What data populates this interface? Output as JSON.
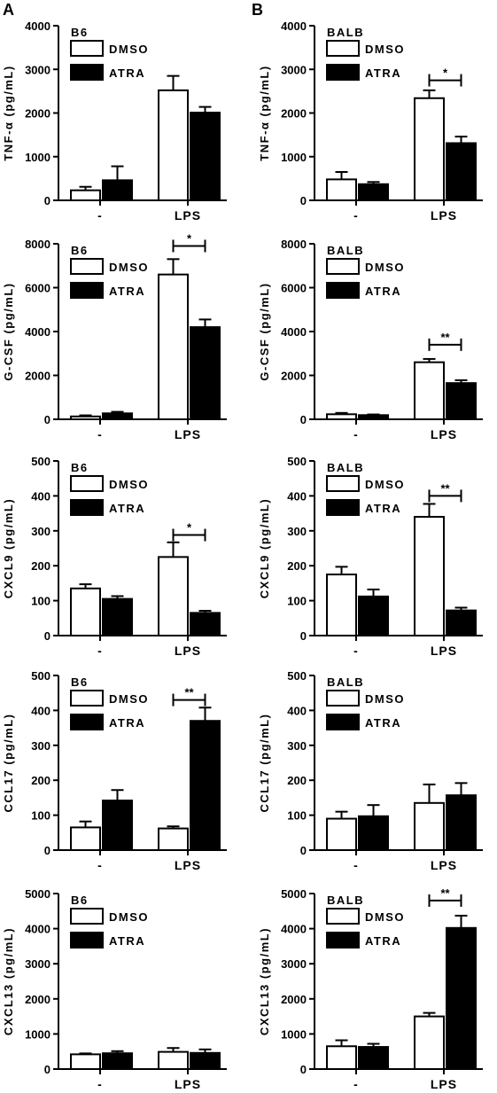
{
  "figure": {
    "panel_labels": [
      "A",
      "B"
    ],
    "legend_labels": [
      "DMSO",
      "ATRA"
    ],
    "category_labels": [
      "-",
      "LPS"
    ],
    "colors": {
      "DMSO": "#ffffff",
      "ATRA": "#000000",
      "stroke": "#000000"
    }
  },
  "chart_data": [
    {
      "type": "bar",
      "panel": "A",
      "strain": "B6",
      "ylabel": "TNF-α (pg/mL)",
      "ylim": [
        0,
        4000
      ],
      "yticks": [
        0,
        1000,
        2000,
        3000,
        4000
      ],
      "ytick_labels": [
        "0",
        "1000",
        "2000",
        "3000",
        "4000"
      ],
      "categories": [
        "-",
        "LPS"
      ],
      "series": [
        {
          "name": "DMSO",
          "values": [
            230,
            2520
          ],
          "errors": [
            80,
            330
          ]
        },
        {
          "name": "ATRA",
          "values": [
            460,
            2010
          ],
          "errors": [
            320,
            130
          ]
        }
      ],
      "significance": []
    },
    {
      "type": "bar",
      "panel": "B",
      "strain": "BALB",
      "ylabel": "TNF-α (pg/mL)",
      "ylim": [
        0,
        4000
      ],
      "yticks": [
        0,
        1000,
        2000,
        3000,
        4000
      ],
      "ytick_labels": [
        "0",
        "1000",
        "2000",
        "3000",
        "4000"
      ],
      "categories": [
        "-",
        "LPS"
      ],
      "series": [
        {
          "name": "DMSO",
          "values": [
            480,
            2340
          ],
          "errors": [
            170,
            180
          ]
        },
        {
          "name": "ATRA",
          "values": [
            370,
            1310
          ],
          "errors": [
            50,
            150
          ]
        }
      ],
      "significance": [
        {
          "label": "*",
          "y": 2750
        }
      ]
    },
    {
      "type": "bar",
      "panel": "A",
      "strain": "B6",
      "ylabel": "G-CSF (pg/mL)",
      "ylim": [
        0,
        8000
      ],
      "yticks": [
        0,
        2000,
        4000,
        6000,
        8000
      ],
      "ytick_labels": [
        "0",
        "2000",
        "4000",
        "6000",
        "8000"
      ],
      "categories": [
        "-",
        "LPS"
      ],
      "series": [
        {
          "name": "DMSO",
          "values": [
            130,
            6600
          ],
          "errors": [
            50,
            700
          ]
        },
        {
          "name": "ATRA",
          "values": [
            270,
            4200
          ],
          "errors": [
            70,
            350
          ]
        }
      ],
      "significance": [
        {
          "label": "*",
          "y": 7900
        }
      ]
    },
    {
      "type": "bar",
      "panel": "B",
      "strain": "BALB",
      "ylabel": "G-CSF (pg/mL)",
      "ylim": [
        0,
        8000
      ],
      "yticks": [
        0,
        2000,
        4000,
        6000,
        8000
      ],
      "ytick_labels": [
        "0",
        "2000",
        "4000",
        "6000",
        "8000"
      ],
      "categories": [
        "-",
        "LPS"
      ],
      "series": [
        {
          "name": "DMSO",
          "values": [
            230,
            2600
          ],
          "errors": [
            60,
            150
          ]
        },
        {
          "name": "ATRA",
          "values": [
            190,
            1650
          ],
          "errors": [
            30,
            130
          ]
        }
      ],
      "significance": [
        {
          "label": "**",
          "y": 3400
        }
      ]
    },
    {
      "type": "bar",
      "panel": "A",
      "strain": "B6",
      "ylabel": "CXCL9 (pg/mL)",
      "ylim": [
        0,
        500
      ],
      "yticks": [
        0,
        100,
        200,
        300,
        400,
        500
      ],
      "ytick_labels": [
        "0",
        "100",
        "200",
        "300",
        "400",
        "500"
      ],
      "categories": [
        "-",
        "LPS"
      ],
      "series": [
        {
          "name": "DMSO",
          "values": [
            135,
            225
          ],
          "errors": [
            12,
            42
          ]
        },
        {
          "name": "ATRA",
          "values": [
            105,
            65
          ],
          "errors": [
            8,
            6
          ]
        }
      ],
      "significance": [
        {
          "label": "*",
          "y": 288
        }
      ]
    },
    {
      "type": "bar",
      "panel": "B",
      "strain": "BALB",
      "ylabel": "CXCL9 (pg/mL)",
      "ylim": [
        0,
        500
      ],
      "yticks": [
        0,
        100,
        200,
        300,
        400,
        500
      ],
      "ytick_labels": [
        "0",
        "100",
        "200",
        "300",
        "400",
        "500"
      ],
      "categories": [
        "-",
        "LPS"
      ],
      "series": [
        {
          "name": "DMSO",
          "values": [
            175,
            340
          ],
          "errors": [
            22,
            37
          ]
        },
        {
          "name": "ATRA",
          "values": [
            112,
            72
          ],
          "errors": [
            20,
            8
          ]
        }
      ],
      "significance": [
        {
          "label": "**",
          "y": 400
        }
      ]
    },
    {
      "type": "bar",
      "panel": "A",
      "strain": "B6",
      "ylabel": "CCL17 (pg/mL)",
      "ylim": [
        0,
        500
      ],
      "yticks": [
        0,
        100,
        200,
        300,
        400,
        500
      ],
      "ytick_labels": [
        "0",
        "100",
        "200",
        "300",
        "400",
        "500"
      ],
      "categories": [
        "-",
        "LPS"
      ],
      "series": [
        {
          "name": "DMSO",
          "values": [
            65,
            62
          ],
          "errors": [
            17,
            6
          ]
        },
        {
          "name": "ATRA",
          "values": [
            142,
            370
          ],
          "errors": [
            30,
            38
          ]
        }
      ],
      "significance": [
        {
          "label": "**",
          "y": 430
        }
      ]
    },
    {
      "type": "bar",
      "panel": "B",
      "strain": "BALB",
      "ylabel": "CCL17 (pg/mL)",
      "ylim": [
        0,
        500
      ],
      "yticks": [
        0,
        100,
        200,
        300,
        400,
        500
      ],
      "ytick_labels": [
        "0",
        "100",
        "200",
        "300",
        "400",
        "500"
      ],
      "categories": [
        "-",
        "LPS"
      ],
      "series": [
        {
          "name": "DMSO",
          "values": [
            90,
            135
          ],
          "errors": [
            20,
            53
          ]
        },
        {
          "name": "ATRA",
          "values": [
            97,
            157
          ],
          "errors": [
            32,
            35
          ]
        }
      ],
      "significance": []
    },
    {
      "type": "bar",
      "panel": "A",
      "strain": "B6",
      "ylabel": "CXCL13 (pg/mL)",
      "ylim": [
        0,
        5000
      ],
      "yticks": [
        0,
        1000,
        2000,
        3000,
        4000,
        5000
      ],
      "ytick_labels": [
        "0",
        "1000",
        "2000",
        "3000",
        "4000",
        "5000"
      ],
      "categories": [
        "-",
        "LPS"
      ],
      "series": [
        {
          "name": "DMSO",
          "values": [
            420,
            490
          ],
          "errors": [
            25,
            110
          ]
        },
        {
          "name": "ATRA",
          "values": [
            450,
            460
          ],
          "errors": [
            60,
            100
          ]
        }
      ],
      "significance": []
    },
    {
      "type": "bar",
      "panel": "B",
      "strain": "BALB",
      "ylabel": "CXCL13 (pg/mL)",
      "ylim": [
        0,
        5000
      ],
      "yticks": [
        0,
        1000,
        2000,
        3000,
        4000,
        5000
      ],
      "ytick_labels": [
        "0",
        "1000",
        "2000",
        "3000",
        "4000",
        "5000"
      ],
      "categories": [
        "-",
        "LPS"
      ],
      "series": [
        {
          "name": "DMSO",
          "values": [
            650,
            1500
          ],
          "errors": [
            170,
            100
          ]
        },
        {
          "name": "ATRA",
          "values": [
            630,
            4020
          ],
          "errors": [
            90,
            350
          ]
        }
      ],
      "significance": [
        {
          "label": "**",
          "y": 4800
        }
      ]
    }
  ]
}
